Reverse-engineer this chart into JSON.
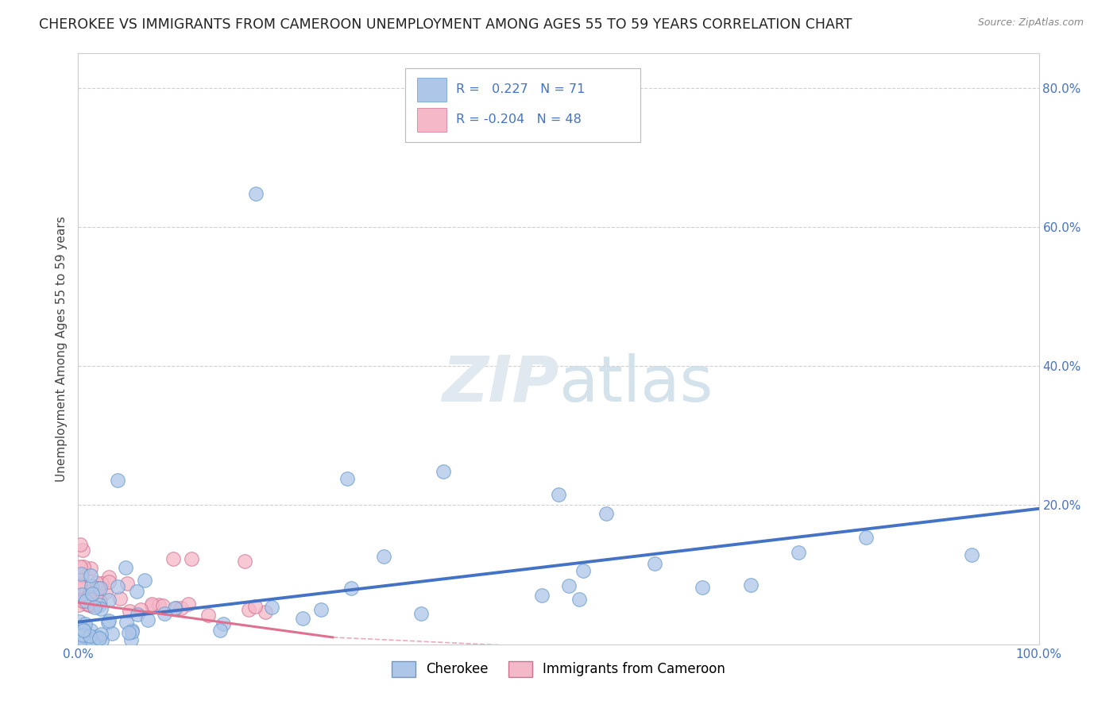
{
  "title": "CHEROKEE VS IMMIGRANTS FROM CAMEROON UNEMPLOYMENT AMONG AGES 55 TO 59 YEARS CORRELATION CHART",
  "source": "Source: ZipAtlas.com",
  "ylabel": "Unemployment Among Ages 55 to 59 years",
  "xlim": [
    0,
    1.0
  ],
  "ylim": [
    0,
    0.85
  ],
  "ytick_positions": [
    0.0,
    0.2,
    0.4,
    0.6,
    0.8
  ],
  "ytick_labels": [
    "",
    "20.0%",
    "40.0%",
    "60.0%",
    "80.0%"
  ],
  "right_tick_color": "#4472c4",
  "background_color": "#ffffff",
  "grid_color": "#d0d0d0",
  "blue_line_color": "#4472c4",
  "pink_line_color": "#e07090",
  "blue_scatter_color": "#aec6e8",
  "pink_scatter_color": "#f4b8c8",
  "blue_scatter_edge": "#6699cc",
  "pink_scatter_edge": "#d07090",
  "title_fontsize": 12.5,
  "axis_label_fontsize": 11,
  "tick_fontsize": 11,
  "legend_entries": [
    {
      "label": "Cherokee",
      "color": "#aec6e8",
      "r": "0.227",
      "n": "71"
    },
    {
      "label": "Immigrants from Cameroon",
      "color": "#f4b8c8",
      "r": "-0.204",
      "n": "48"
    }
  ],
  "cherokee_n": 71,
  "cameroon_n": 48,
  "blue_line_x": [
    0.0,
    1.0
  ],
  "blue_line_y": [
    0.032,
    0.195
  ],
  "pink_line_x": [
    0.0,
    0.265
  ],
  "pink_line_y": [
    0.06,
    0.01
  ]
}
